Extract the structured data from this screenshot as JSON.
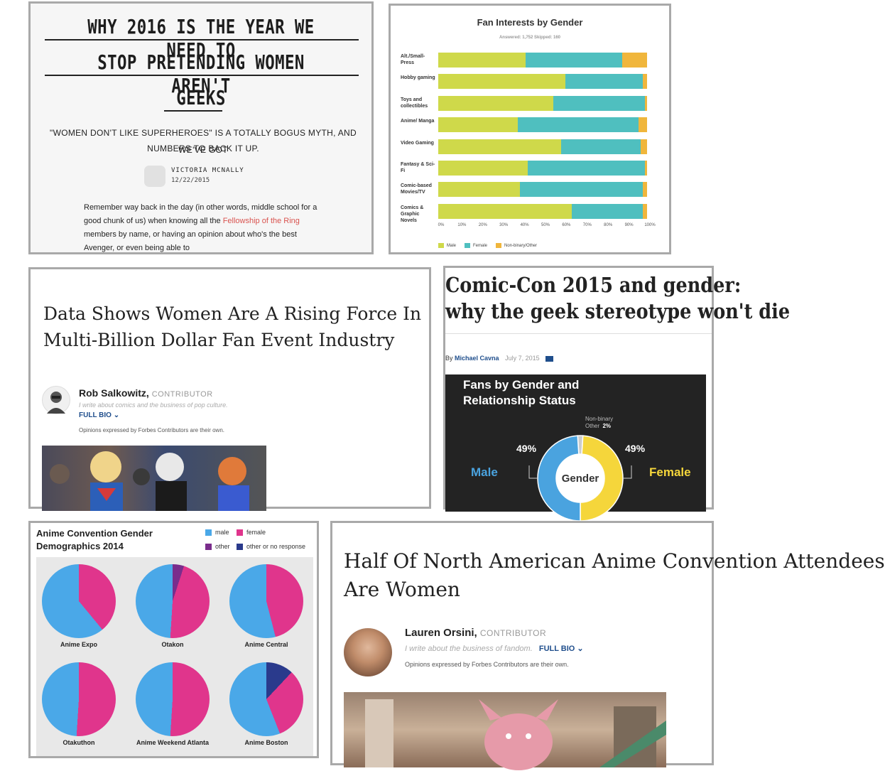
{
  "card1": {
    "title_lines": [
      "WHY 2016 IS THE YEAR WE NEED TO",
      "STOP PRETENDING WOMEN AREN'T",
      "GEEKS"
    ],
    "subtitle_lines": [
      "\"WOMEN DON'T LIKE SUPERHEROES\" IS A TOTALLY BOGUS MYTH, AND WE'VE GOT",
      "NUMBERS TO BACK IT UP."
    ],
    "author": "VICTORIA MCNALLY",
    "date": "12/22/2015",
    "body_1": "Remember way back in the day (in other words, middle school for a good chunk of us) when knowing all the ",
    "body_link": "Fellowship of the Ring",
    "body_2": " members by name, or having an opinion about who's the best Avenger, or even being able to"
  },
  "card2": {
    "chart_data": {
      "type": "bar",
      "orientation": "horizontal-stacked",
      "title": "Fan Interests by Gender",
      "meta": "Answered: 1,752    Skipped: 160",
      "categories": [
        "Alt./Small-Press",
        "Hobby gaming",
        "Toys and collectibles",
        "Anime/ Manga",
        "Video Gaming",
        "Fantasy & Sci-Fi",
        "Comic-based Movies/TV",
        "Comics & Graphic Novels"
      ],
      "series": [
        {
          "name": "Male",
          "color": "#cfd94a",
          "values": [
            42,
            61,
            55,
            38,
            59,
            43,
            39,
            64
          ]
        },
        {
          "name": "Female",
          "color": "#4fbfbf",
          "values": [
            46,
            37,
            44,
            58,
            38,
            56,
            59,
            34
          ]
        },
        {
          "name": "Non-binary/Other",
          "color": "#f0b63c",
          "values": [
            12,
            2,
            1,
            4,
            3,
            1,
            2,
            2
          ]
        }
      ],
      "xticks": [
        "0%",
        "10%",
        "20%",
        "30%",
        "40%",
        "50%",
        "60%",
        "70%",
        "80%",
        "90%",
        "100%"
      ],
      "xlim": [
        0,
        100
      ]
    }
  },
  "card3": {
    "title": "Data Shows Women Are A Rising Force In Multi-Billion Dollar Fan Event Industry",
    "author": "Rob Salkowitz",
    "contributor": "CONTRIBUTOR",
    "tagline": "I write about comics and the business of pop culture.",
    "full_bio": "FULL BIO",
    "opinion": "Opinions expressed by Forbes Contributors are their own."
  },
  "card4": {
    "title_lines": [
      "Comic-Con 2015 and gender:",
      "why the geek stereotype won't die"
    ],
    "by": "By",
    "author": "Michael Cavna",
    "date": "July 7, 2015",
    "chart_data": {
      "type": "pie",
      "title": "Fans by Gender and Relationship Status",
      "center_label": "Gender",
      "slices": [
        {
          "label": "Male",
          "value": 49,
          "pct_label": "49%",
          "color": "#4aa3df"
        },
        {
          "label": "Female",
          "value": 49,
          "pct_label": "49%",
          "color": "#f5d63b"
        },
        {
          "label": "Non-binary Other",
          "value": 2,
          "pct_label": "2%",
          "color": "#cccccc"
        }
      ],
      "other_label_1": "Non-binary",
      "other_label_2": "Other"
    }
  },
  "card5": {
    "chart_data": {
      "type": "pie",
      "title": "Anime Convention Gender Demographics 2014",
      "legend": [
        {
          "name": "male",
          "color": "#4aa8e8"
        },
        {
          "name": "female",
          "color": "#e0358c"
        },
        {
          "name": "other",
          "color": "#7a2d8c"
        },
        {
          "name": "other or no response",
          "color": "#2a3a8c"
        }
      ],
      "pies": [
        {
          "name": "Anime Expo",
          "values": [
            61,
            39,
            0,
            0
          ]
        },
        {
          "name": "Otakon",
          "values": [
            49,
            46,
            5,
            0
          ]
        },
        {
          "name": "Anime Central",
          "values": [
            54,
            46,
            0,
            0
          ]
        },
        {
          "name": "Otakuthon",
          "values": [
            49,
            51,
            0,
            0
          ]
        },
        {
          "name": "Anime Weekend Atlanta",
          "values": [
            49,
            51,
            0,
            0
          ]
        },
        {
          "name": "Anime Boston",
          "values": [
            56,
            32,
            0,
            12
          ]
        }
      ]
    }
  },
  "card6": {
    "title_lines": [
      "Half Of North American Anime Convention Attendees",
      "Are Women"
    ],
    "author": "Lauren Orsini",
    "contributor": "CONTRIBUTOR",
    "tagline": "I write about the business of fandom.",
    "full_bio": "FULL BIO",
    "opinion": "Opinions expressed by Forbes Contributors are their own."
  }
}
